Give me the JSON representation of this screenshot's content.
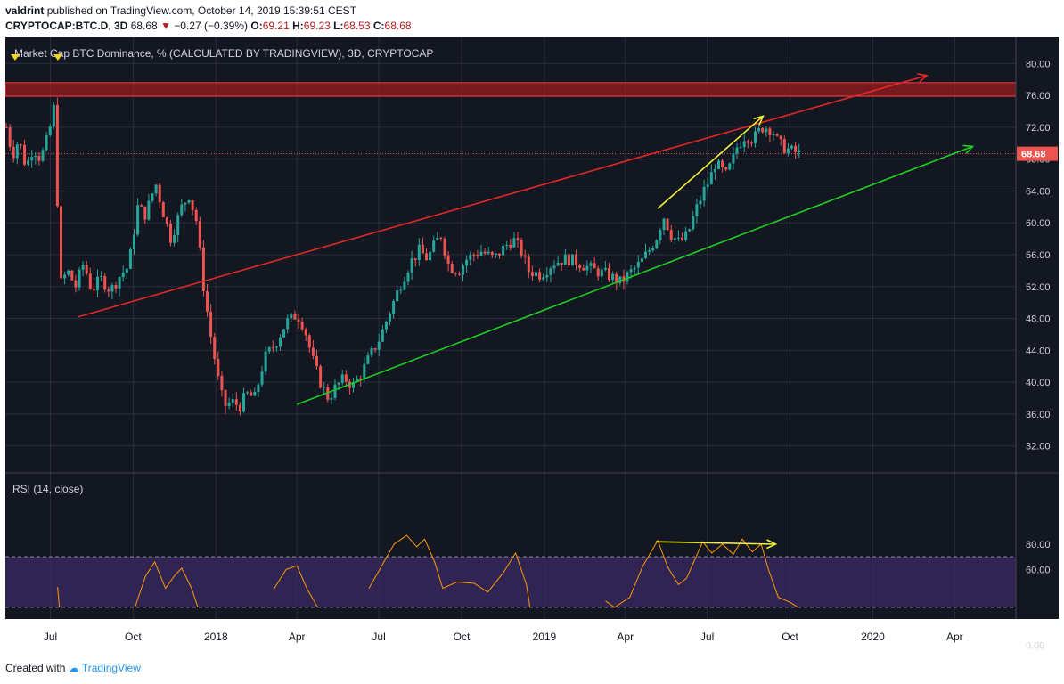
{
  "header": {
    "user": "valdrint",
    "published": "published on TradingView.com, October 14, 2019 15:39:51 CEST",
    "symbol": "CRYPTOCAP:BTC.D, 3D",
    "last": "68.68",
    "change": "−0.27 (−0.39%)",
    "open_label": "O:",
    "open": "69.21",
    "high_label": "H:",
    "high": "69.23",
    "low_label": "L:",
    "low": "68.53",
    "close_label": "C:",
    "close": "68.68"
  },
  "footer": {
    "created_with": "Created with",
    "brand": "TradingView"
  },
  "chart_data": {
    "type": "candlestick",
    "title": "Market Cap BTC Dominance, % (CALCULATED BY TRADINGVIEW), 3D, CRYPTOCAP",
    "last_price_label": "68.68",
    "price_axis": {
      "ticks": [
        80,
        76,
        72,
        68,
        64,
        60,
        56,
        52,
        48,
        44,
        40,
        36,
        32
      ],
      "tick_labels": [
        "80.00",
        "76.00",
        "72.00",
        "68.00",
        "64.00",
        "60.00",
        "56.00",
        "52.00",
        "48.00",
        "44.00",
        "40.00",
        "36.00",
        "32.00"
      ],
      "ylim": [
        28.6,
        83.4
      ]
    },
    "time_axis": {
      "labels": [
        "Jul",
        "Oct",
        "2018",
        "Apr",
        "Jul",
        "Oct",
        "2019",
        "Apr",
        "Jul",
        "Oct",
        "2020",
        "Apr"
      ],
      "xlim": [
        "2017-05-12",
        "2020-06-08"
      ]
    },
    "close_path": [
      {
        "t": "2017-05-13",
        "v": 72.0
      },
      {
        "t": "2017-05-20",
        "v": 68.5
      },
      {
        "t": "2017-05-27",
        "v": 70.5
      },
      {
        "t": "2017-06-04",
        "v": 67.0
      },
      {
        "t": "2017-06-12",
        "v": 69.5
      },
      {
        "t": "2017-06-20",
        "v": 68.0
      },
      {
        "t": "2017-06-29",
        "v": 71.0
      },
      {
        "t": "2017-07-05",
        "v": 74.5
      },
      {
        "t": "2017-07-08",
        "v": 67.0
      },
      {
        "t": "2017-07-11",
        "v": 52.0
      },
      {
        "t": "2017-07-20",
        "v": 54.0
      },
      {
        "t": "2017-07-29",
        "v": 52.0
      },
      {
        "t": "2017-08-07",
        "v": 55.0
      },
      {
        "t": "2017-08-16",
        "v": 51.5
      },
      {
        "t": "2017-08-26",
        "v": 53.0
      },
      {
        "t": "2017-09-06",
        "v": 51.5
      },
      {
        "t": "2017-09-17",
        "v": 53.5
      },
      {
        "t": "2017-09-26",
        "v": 54.5
      },
      {
        "t": "2017-10-06",
        "v": 62.0
      },
      {
        "t": "2017-10-15",
        "v": 61.0
      },
      {
        "t": "2017-10-26",
        "v": 65.0
      },
      {
        "t": "2017-11-03",
        "v": 61.5
      },
      {
        "t": "2017-11-12",
        "v": 58.0
      },
      {
        "t": "2017-11-24",
        "v": 62.0
      },
      {
        "t": "2017-12-02",
        "v": 63.5
      },
      {
        "t": "2017-12-11",
        "v": 60.0
      },
      {
        "t": "2017-12-17",
        "v": 53.0
      },
      {
        "t": "2017-12-26",
        "v": 46.0
      },
      {
        "t": "2018-01-04",
        "v": 40.0
      },
      {
        "t": "2018-01-10",
        "v": 37.0
      },
      {
        "t": "2018-01-19",
        "v": 37.5
      },
      {
        "t": "2018-01-28",
        "v": 37.0
      },
      {
        "t": "2018-02-04",
        "v": 38.5
      },
      {
        "t": "2018-02-13",
        "v": 38.0
      },
      {
        "t": "2018-02-24",
        "v": 43.0
      },
      {
        "t": "2018-03-09",
        "v": 45.0
      },
      {
        "t": "2018-03-20",
        "v": 47.5
      },
      {
        "t": "2018-04-01",
        "v": 48.5
      },
      {
        "t": "2018-04-09",
        "v": 47.0
      },
      {
        "t": "2018-04-18",
        "v": 43.0
      },
      {
        "t": "2018-04-27",
        "v": 40.0
      },
      {
        "t": "2018-05-06",
        "v": 38.0
      },
      {
        "t": "2018-05-15",
        "v": 39.5
      },
      {
        "t": "2018-05-24",
        "v": 40.5
      },
      {
        "t": "2018-06-02",
        "v": 39.5
      },
      {
        "t": "2018-06-11",
        "v": 41.0
      },
      {
        "t": "2018-06-20",
        "v": 43.0
      },
      {
        "t": "2018-07-02",
        "v": 45.5
      },
      {
        "t": "2018-07-12",
        "v": 48.5
      },
      {
        "t": "2018-07-24",
        "v": 52.0
      },
      {
        "t": "2018-08-05",
        "v": 55.0
      },
      {
        "t": "2018-08-15",
        "v": 56.5
      },
      {
        "t": "2018-08-24",
        "v": 55.5
      },
      {
        "t": "2018-09-02",
        "v": 57.5
      },
      {
        "t": "2018-09-08",
        "v": 58.5
      },
      {
        "t": "2018-09-17",
        "v": 54.5
      },
      {
        "t": "2018-09-28",
        "v": 54.0
      },
      {
        "t": "2018-10-07",
        "v": 55.5
      },
      {
        "t": "2018-10-22",
        "v": 56.5
      },
      {
        "t": "2018-11-06",
        "v": 55.5
      },
      {
        "t": "2018-11-18",
        "v": 57.0
      },
      {
        "t": "2018-11-27",
        "v": 58.0
      },
      {
        "t": "2018-12-06",
        "v": 56.5
      },
      {
        "t": "2018-12-14",
        "v": 54.0
      },
      {
        "t": "2018-12-28",
        "v": 53.5
      },
      {
        "t": "2019-01-11",
        "v": 55.0
      },
      {
        "t": "2019-01-26",
        "v": 55.5
      },
      {
        "t": "2019-02-08",
        "v": 55.0
      },
      {
        "t": "2019-02-26",
        "v": 54.0
      },
      {
        "t": "2019-03-12",
        "v": 53.5
      },
      {
        "t": "2019-03-27",
        "v": 52.5
      },
      {
        "t": "2019-04-04",
        "v": 53.5
      },
      {
        "t": "2019-04-18",
        "v": 55.0
      },
      {
        "t": "2019-04-30",
        "v": 57.0
      },
      {
        "t": "2019-05-07",
        "v": 58.5
      },
      {
        "t": "2019-05-13",
        "v": 61.0
      },
      {
        "t": "2019-05-22",
        "v": 58.5
      },
      {
        "t": "2019-05-31",
        "v": 57.5
      },
      {
        "t": "2019-06-09",
        "v": 58.5
      },
      {
        "t": "2019-06-18",
        "v": 61.5
      },
      {
        "t": "2019-06-27",
        "v": 64.0
      },
      {
        "t": "2019-07-04",
        "v": 65.5
      },
      {
        "t": "2019-07-10",
        "v": 67.5
      },
      {
        "t": "2019-07-22",
        "v": 66.0
      },
      {
        "t": "2019-07-28",
        "v": 67.5
      },
      {
        "t": "2019-08-03",
        "v": 69.5
      },
      {
        "t": "2019-08-12",
        "v": 71.0
      },
      {
        "t": "2019-08-21",
        "v": 70.5
      },
      {
        "t": "2019-08-31",
        "v": 72.0
      },
      {
        "t": "2019-09-06",
        "v": 72.0
      },
      {
        "t": "2019-09-12",
        "v": 71.5
      },
      {
        "t": "2019-09-18",
        "v": 70.0
      },
      {
        "t": "2019-09-24",
        "v": 69.5
      },
      {
        "t": "2019-10-03",
        "v": 69.0
      },
      {
        "t": "2019-10-12",
        "v": 68.68
      }
    ],
    "resistance_zone": [
      75.9,
      77.6
    ],
    "last_price_line": 68.68,
    "trendlines": [
      {
        "color": "#e32726",
        "from": {
          "t": "2017-08-01",
          "v": 48.2
        },
        "to": {
          "t": "2020-03-01",
          "v": 78.5
        },
        "arrow": true
      },
      {
        "color": "#1fcc1f",
        "from": {
          "t": "2018-04-01",
          "v": 37.2
        },
        "to": {
          "t": "2020-04-21",
          "v": 69.6
        },
        "arrow": true
      },
      {
        "color": "#f5f23a",
        "from": {
          "t": "2019-05-07",
          "v": 61.8
        },
        "to": {
          "t": "2019-09-01",
          "v": 73.4
        },
        "arrow": true
      }
    ],
    "rsi": {
      "label": "RSI (14, close)",
      "ticks": [
        80,
        60,
        0
      ],
      "tick_labels": [
        "80.00",
        "60.00",
        "0.00"
      ],
      "overbought": 70,
      "oversold": 30,
      "path": [
        {
          "t": "2017-07-09",
          "v": 46
        },
        {
          "t": "2017-07-11",
          "v": 6
        },
        {
          "t": "2017-10-03",
          "v": 29
        },
        {
          "t": "2017-10-15",
          "v": 55
        },
        {
          "t": "2017-10-25",
          "v": 66
        },
        {
          "t": "2017-11-06",
          "v": 45
        },
        {
          "t": "2017-11-16",
          "v": 55
        },
        {
          "t": "2017-11-24",
          "v": 61
        },
        {
          "t": "2017-12-05",
          "v": 45
        },
        {
          "t": "2017-12-12",
          "v": 30
        },
        {
          "t": "2018-03-06",
          "v": 44
        },
        {
          "t": "2018-03-20",
          "v": 60
        },
        {
          "t": "2018-04-01",
          "v": 63
        },
        {
          "t": "2018-04-12",
          "v": 45
        },
        {
          "t": "2018-04-24",
          "v": 30
        },
        {
          "t": "2018-06-20",
          "v": 45
        },
        {
          "t": "2018-07-06",
          "v": 65
        },
        {
          "t": "2018-07-18",
          "v": 80
        },
        {
          "t": "2018-08-01",
          "v": 87
        },
        {
          "t": "2018-08-12",
          "v": 78
        },
        {
          "t": "2018-08-21",
          "v": 84
        },
        {
          "t": "2018-09-01",
          "v": 66
        },
        {
          "t": "2018-09-10",
          "v": 45
        },
        {
          "t": "2018-09-26",
          "v": 50
        },
        {
          "t": "2018-10-15",
          "v": 49
        },
        {
          "t": "2018-10-30",
          "v": 42
        },
        {
          "t": "2018-11-16",
          "v": 57
        },
        {
          "t": "2018-11-30",
          "v": 73
        },
        {
          "t": "2018-12-12",
          "v": 48
        },
        {
          "t": "2018-12-16",
          "v": 30
        },
        {
          "t": "2019-03-10",
          "v": 35
        },
        {
          "t": "2019-03-20",
          "v": 30
        },
        {
          "t": "2019-04-06",
          "v": 38
        },
        {
          "t": "2019-04-20",
          "v": 62
        },
        {
          "t": "2019-05-07",
          "v": 83
        },
        {
          "t": "2019-05-18",
          "v": 62
        },
        {
          "t": "2019-05-30",
          "v": 48
        },
        {
          "t": "2019-06-08",
          "v": 53
        },
        {
          "t": "2019-06-18",
          "v": 69
        },
        {
          "t": "2019-06-26",
          "v": 82
        },
        {
          "t": "2019-07-06",
          "v": 73
        },
        {
          "t": "2019-07-18",
          "v": 80
        },
        {
          "t": "2019-07-30",
          "v": 72
        },
        {
          "t": "2019-08-09",
          "v": 84
        },
        {
          "t": "2019-08-20",
          "v": 74
        },
        {
          "t": "2019-08-30",
          "v": 80
        },
        {
          "t": "2019-09-07",
          "v": 60
        },
        {
          "t": "2019-09-18",
          "v": 38
        },
        {
          "t": "2019-10-01",
          "v": 34
        },
        {
          "t": "2019-10-10",
          "v": 30
        }
      ],
      "divergence": {
        "color": "#f5f23a",
        "from": {
          "t": "2019-05-05",
          "v": 82
        },
        "to": {
          "t": "2019-09-15",
          "v": 80
        },
        "arrow": true
      }
    }
  }
}
